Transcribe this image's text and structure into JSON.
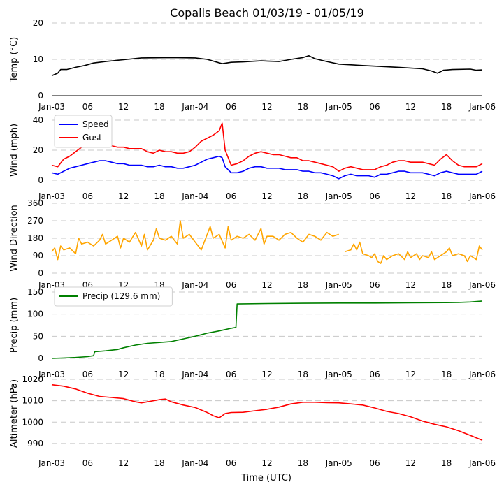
{
  "title": "Copalis Beach 01/03/19 - 01/05/19",
  "x_axis_title": "Time (UTC)",
  "x_tick_labels": [
    "Jan-03",
    "06",
    "12",
    "18",
    "Jan-04",
    "06",
    "12",
    "18",
    "Jan-05",
    "06",
    "12",
    "18",
    "Jan-06"
  ],
  "chart_data": [
    {
      "type": "line",
      "id": "temp",
      "ylabel": "Temp ($^\\circ$C)",
      "ylabel_display": "Temp (°C)",
      "ylim": [
        0,
        20
      ],
      "yticks": [
        "0",
        "10",
        "20"
      ],
      "x_units": "hours since Jan-03 00:00 UTC",
      "xlim": [
        0,
        72
      ],
      "legend": null,
      "series": [
        {
          "name": "Temp",
          "color": "#000000",
          "x": [
            0,
            1,
            1.5,
            2.5,
            4,
            5.5,
            7,
            9,
            12,
            15,
            20,
            24,
            26,
            28.5,
            30,
            32,
            35,
            38,
            40,
            42,
            43,
            44,
            46,
            48,
            52,
            58,
            62,
            63.5,
            64.5,
            65.5,
            67,
            70,
            71,
            72
          ],
          "y": [
            5.5,
            6.2,
            7.2,
            7.2,
            7.8,
            8.3,
            9.0,
            9.4,
            9.9,
            10.4,
            10.5,
            10.4,
            10.0,
            8.8,
            9.2,
            9.3,
            9.6,
            9.4,
            10.0,
            10.5,
            11.0,
            10.2,
            9.4,
            8.7,
            8.3,
            7.8,
            7.4,
            6.8,
            6.2,
            7.0,
            7.2,
            7.3,
            7.0,
            7.1
          ]
        }
      ]
    },
    {
      "type": "line",
      "id": "wind",
      "ylabel": "Wind (mph)",
      "ylim": [
        0,
        40
      ],
      "yticks": [
        "0",
        "20",
        "40"
      ],
      "xlim": [
        0,
        72
      ],
      "legend": "upper-left",
      "series": [
        {
          "name": "Speed",
          "color": "#0000ff",
          "x": [
            0,
            1,
            2,
            3,
            4,
            5,
            6,
            7,
            8,
            9,
            10,
            11,
            12,
            13,
            14,
            15,
            16,
            17,
            18,
            19,
            20,
            21,
            22,
            23,
            24,
            25,
            26,
            27,
            28,
            28.5,
            29,
            30,
            31,
            32,
            33,
            34,
            35,
            36,
            37,
            38,
            39,
            40,
            41,
            42,
            43,
            44,
            45,
            46,
            47,
            48,
            49,
            50,
            51,
            52,
            53,
            54,
            55,
            56,
            57,
            58,
            59,
            60,
            61,
            62,
            63,
            64,
            65,
            66,
            67,
            68,
            69,
            70,
            71,
            72
          ],
          "y": [
            5,
            4,
            6,
            8,
            9,
            10,
            11,
            12,
            13,
            13,
            12,
            11,
            11,
            10,
            10,
            10,
            9,
            9,
            10,
            9,
            9,
            8,
            8,
            9,
            10,
            12,
            14,
            15,
            16,
            15,
            9,
            5,
            5,
            6,
            8,
            9,
            9,
            8,
            8,
            8,
            7,
            7,
            7,
            6,
            6,
            5,
            5,
            4,
            3,
            1,
            3,
            4,
            3,
            3,
            3,
            2,
            4,
            4,
            5,
            6,
            6,
            5,
            5,
            5,
            4,
            3,
            5,
            6,
            5,
            4,
            4,
            4,
            4,
            6
          ]
        },
        {
          "name": "Gust",
          "color": "#ff0000",
          "x": [
            0,
            1,
            2,
            3,
            4,
            5,
            6,
            7,
            8,
            9,
            10,
            11,
            12,
            13,
            14,
            15,
            16,
            17,
            18,
            19,
            20,
            21,
            22,
            23,
            24,
            25,
            26,
            27,
            28,
            28.5,
            29,
            30,
            31,
            32,
            33,
            34,
            35,
            36,
            37,
            38,
            39,
            40,
            41,
            42,
            43,
            44,
            45,
            46,
            47,
            48,
            49,
            50,
            51,
            52,
            53,
            54,
            55,
            56,
            57,
            58,
            59,
            60,
            61,
            62,
            63,
            64,
            65,
            66,
            67,
            68,
            69,
            70,
            71,
            72
          ],
          "y": [
            10,
            9,
            14,
            16,
            19,
            22,
            24,
            25,
            26,
            25,
            23,
            22,
            22,
            21,
            21,
            21,
            19,
            18,
            20,
            19,
            19,
            18,
            18,
            19,
            22,
            26,
            28,
            30,
            33,
            38,
            20,
            10,
            11,
            13,
            16,
            18,
            19,
            18,
            17,
            17,
            16,
            15,
            15,
            13,
            13,
            12,
            11,
            10,
            9,
            6,
            8,
            9,
            8,
            7,
            7,
            7,
            9,
            10,
            12,
            13,
            13,
            12,
            12,
            12,
            11,
            10,
            14,
            17,
            13,
            10,
            9,
            9,
            9,
            11
          ]
        }
      ]
    },
    {
      "type": "line",
      "id": "wind_direction",
      "ylabel": "Wind Direction",
      "ylim": [
        0,
        360
      ],
      "yticks": [
        "0",
        "90",
        "180",
        "270",
        "360"
      ],
      "xlim": [
        0,
        72
      ],
      "legend": null,
      "gap_between_hours": [
        48,
        49
      ],
      "series": [
        {
          "name": "Wind Direction",
          "color": "#ffa500",
          "x": [
            0,
            0.5,
            1,
            1.5,
            2,
            3,
            4,
            4.5,
            5,
            6,
            7,
            8,
            8.5,
            9,
            10,
            11,
            11.5,
            12,
            13,
            14,
            15,
            15.5,
            16,
            17,
            17.5,
            18,
            19,
            20,
            21,
            21.5,
            22,
            23,
            24,
            25,
            26,
            26.5,
            27,
            28,
            29,
            29.5,
            30,
            31,
            32,
            33,
            34,
            35,
            35.5,
            36,
            37,
            38,
            39,
            40,
            41,
            42,
            43,
            44,
            45,
            46,
            47,
            48
          ],
          "y": [
            110,
            130,
            70,
            140,
            120,
            130,
            100,
            180,
            150,
            160,
            140,
            170,
            200,
            150,
            170,
            190,
            130,
            180,
            160,
            210,
            140,
            200,
            120,
            170,
            230,
            180,
            170,
            190,
            150,
            270,
            180,
            200,
            160,
            120,
            200,
            240,
            180,
            200,
            130,
            240,
            170,
            190,
            180,
            200,
            170,
            230,
            150,
            190,
            190,
            170,
            200,
            210,
            180,
            160,
            200,
            190,
            170,
            210,
            190,
            200
          ]
        },
        {
          "name": "Wind Direction (after gap)",
          "color": "#ffa500",
          "x": [
            49,
            50,
            50.5,
            51,
            51.5,
            52,
            53,
            53.5,
            54,
            54.5,
            55,
            55.5,
            56,
            57,
            58,
            59,
            59.5,
            60,
            61,
            61.5,
            62,
            63,
            63.5,
            64,
            65,
            66,
            66.5,
            67,
            68,
            69,
            69.5,
            70,
            71,
            71.5,
            72
          ],
          "y": [
            110,
            120,
            150,
            120,
            160,
            100,
            90,
            80,
            100,
            60,
            50,
            90,
            70,
            90,
            100,
            70,
            110,
            80,
            100,
            70,
            90,
            80,
            110,
            70,
            90,
            110,
            130,
            90,
            100,
            90,
            60,
            90,
            70,
            140,
            120
          ]
        }
      ]
    },
    {
      "type": "line",
      "id": "precip",
      "ylabel": "Precip (mm)",
      "ylim": [
        0,
        150
      ],
      "yticks": [
        "0",
        "50",
        "100",
        "150"
      ],
      "xlim": [
        0,
        72
      ],
      "legend": "upper-left",
      "series": [
        {
          "name": "Precip (129.6 mm)",
          "color": "#008000",
          "x": [
            0,
            2,
            4,
            6,
            7,
            7.2,
            9,
            11,
            12,
            14,
            16,
            18,
            20,
            22,
            24,
            26,
            28,
            30,
            30.8,
            31,
            36,
            42,
            48,
            54,
            60,
            66,
            68,
            70,
            72
          ],
          "y": [
            0,
            1,
            2,
            4,
            6,
            15,
            17,
            20,
            24,
            30,
            34,
            36,
            38,
            44,
            50,
            57,
            62,
            68,
            70,
            123,
            124,
            124.5,
            125,
            125,
            125.5,
            126,
            126.5,
            127.5,
            129.6
          ]
        }
      ]
    },
    {
      "type": "line",
      "id": "altimeter",
      "ylabel": "Altimeter (hPa)",
      "ylim": [
        988,
        1020
      ],
      "yticks": [
        "990",
        "1000",
        "1010",
        "1020"
      ],
      "xlim": [
        0,
        72
      ],
      "legend": null,
      "series": [
        {
          "name": "Altimeter",
          "color": "#ff0000",
          "x": [
            0,
            2,
            4,
            6,
            8,
            10,
            12,
            14,
            15,
            16,
            18,
            19,
            20,
            22,
            24,
            26,
            27,
            28,
            29,
            30,
            32,
            34,
            36,
            38,
            40,
            42,
            44,
            46,
            48,
            50,
            52,
            54,
            56,
            58,
            60,
            62,
            64,
            66,
            68,
            70,
            72
          ],
          "y": [
            1017.5,
            1016.8,
            1015.5,
            1013.5,
            1012,
            1011.5,
            1011,
            1009.5,
            1009,
            1009.5,
            1010.5,
            1010.8,
            1009.5,
            1008,
            1006.8,
            1004.5,
            1003,
            1002,
            1004,
            1004.5,
            1004.6,
            1005.3,
            1006,
            1007,
            1008.5,
            1009.3,
            1009.3,
            1009.1,
            1009,
            1008.5,
            1008,
            1006.6,
            1005,
            1004,
            1002.5,
            1000.5,
            999,
            997.8,
            996,
            993.8,
            991.5
          ]
        }
      ]
    }
  ]
}
